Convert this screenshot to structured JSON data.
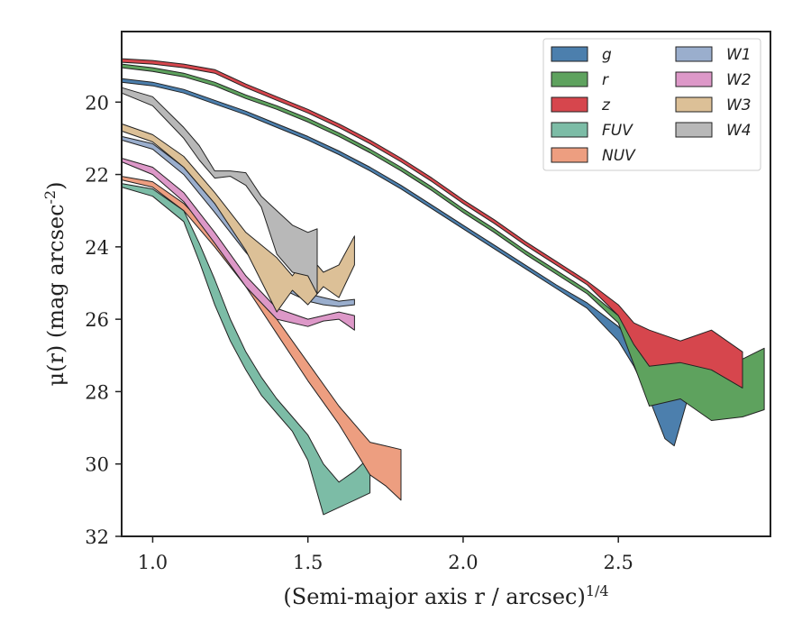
{
  "chart_data": {
    "type": "area",
    "xlabel": "(Semi-major axis r / arcsec)^{1/4}",
    "ylabel": "μ(r) (mag arcsec^{-2})",
    "xlim": [
      0.9,
      2.99
    ],
    "ylim": [
      32,
      18.05
    ],
    "y_inverted": true,
    "x_ticks": [
      "1.0",
      "1.5",
      "2.0",
      "2.5"
    ],
    "x_tick_values": [
      1.0,
      1.5,
      2.0,
      2.5
    ],
    "y_ticks": [
      "20",
      "22",
      "24",
      "26",
      "28",
      "30",
      "32"
    ],
    "y_tick_values": [
      20,
      22,
      24,
      26,
      28,
      30,
      32
    ],
    "grid": false,
    "legend_position": "top-right",
    "series": [
      {
        "name": "g",
        "color": "#4c7fad",
        "x": [
          0.9,
          1.0,
          1.1,
          1.2,
          1.3,
          1.4,
          1.5,
          1.6,
          1.7,
          1.8,
          1.9,
          2.0,
          2.1,
          2.2,
          2.3,
          2.4,
          2.5,
          2.55,
          2.6,
          2.65,
          2.68,
          2.72
        ],
        "lower": [
          19.35,
          19.45,
          19.65,
          19.95,
          20.25,
          20.6,
          20.95,
          21.35,
          21.8,
          22.3,
          22.85,
          23.4,
          23.95,
          24.5,
          25.05,
          25.55,
          26.2,
          26.7,
          27.3,
          27.8,
          28.2,
          28.0
        ],
        "upper": [
          19.45,
          19.55,
          19.75,
          20.05,
          20.35,
          20.7,
          21.05,
          21.45,
          21.9,
          22.4,
          22.95,
          23.5,
          24.05,
          24.6,
          25.15,
          25.7,
          26.6,
          27.3,
          28.2,
          29.3,
          29.5,
          28.3
        ]
      },
      {
        "name": "r",
        "color": "#5ea25e",
        "x": [
          0.9,
          1.0,
          1.1,
          1.2,
          1.3,
          1.4,
          1.5,
          1.6,
          1.7,
          1.8,
          1.9,
          2.0,
          2.1,
          2.2,
          2.3,
          2.4,
          2.5,
          2.6,
          2.7,
          2.8,
          2.9,
          2.97
        ],
        "lower": [
          18.95,
          19.05,
          19.2,
          19.45,
          19.8,
          20.1,
          20.45,
          20.85,
          21.3,
          21.8,
          22.35,
          22.95,
          23.5,
          24.1,
          24.65,
          25.2,
          25.9,
          26.6,
          27.1,
          27.3,
          27.1,
          26.8
        ],
        "upper": [
          19.05,
          19.15,
          19.3,
          19.55,
          19.9,
          20.2,
          20.55,
          20.95,
          21.4,
          21.9,
          22.45,
          23.05,
          23.6,
          24.2,
          24.75,
          25.3,
          26.1,
          28.4,
          28.2,
          28.8,
          28.7,
          28.5
        ]
      },
      {
        "name": "z",
        "color": "#d6464d",
        "x": [
          0.9,
          1.0,
          1.1,
          1.2,
          1.3,
          1.4,
          1.5,
          1.6,
          1.7,
          1.8,
          1.9,
          2.0,
          2.1,
          2.2,
          2.3,
          2.4,
          2.5,
          2.55,
          2.6,
          2.7,
          2.8,
          2.9
        ],
        "lower": [
          18.8,
          18.85,
          18.95,
          19.1,
          19.5,
          19.85,
          20.2,
          20.6,
          21.05,
          21.55,
          22.1,
          22.7,
          23.25,
          23.85,
          24.4,
          24.95,
          25.6,
          26.1,
          26.3,
          26.6,
          26.3,
          26.9
        ],
        "upper": [
          18.9,
          18.95,
          19.05,
          19.2,
          19.6,
          19.95,
          20.3,
          20.7,
          21.15,
          21.65,
          22.2,
          22.8,
          23.35,
          23.95,
          24.5,
          25.05,
          25.9,
          26.7,
          27.3,
          27.2,
          27.4,
          27.9
        ]
      },
      {
        "name": "FUV",
        "color": "#7cbca6",
        "x": [
          0.9,
          1.0,
          1.1,
          1.15,
          1.2,
          1.25,
          1.3,
          1.35,
          1.4,
          1.45,
          1.5,
          1.55,
          1.6,
          1.65,
          1.7
        ],
        "lower": [
          22.25,
          22.4,
          23.0,
          23.9,
          24.9,
          26.0,
          26.9,
          27.6,
          28.2,
          28.7,
          29.2,
          30.0,
          30.5,
          30.2,
          29.8
        ],
        "upper": [
          22.35,
          22.6,
          23.3,
          24.4,
          25.6,
          26.6,
          27.4,
          28.1,
          28.6,
          29.1,
          29.9,
          31.4,
          31.2,
          31.0,
          30.8
        ]
      },
      {
        "name": "NUV",
        "color": "#ed9e80",
        "x": [
          0.9,
          1.0,
          1.1,
          1.2,
          1.3,
          1.4,
          1.5,
          1.6,
          1.65,
          1.7,
          1.75,
          1.8
        ],
        "lower": [
          22.05,
          22.2,
          22.8,
          23.7,
          24.8,
          26.0,
          27.2,
          28.4,
          28.9,
          29.4,
          29.5,
          29.6
        ],
        "upper": [
          22.15,
          22.35,
          23.0,
          24.0,
          25.1,
          26.4,
          27.7,
          28.9,
          29.6,
          30.3,
          30.6,
          31.0
        ]
      },
      {
        "name": "W1",
        "color": "#9aaecd",
        "x": [
          0.9,
          1.0,
          1.1,
          1.2,
          1.3,
          1.4,
          1.5,
          1.55,
          1.6,
          1.65
        ],
        "lower": [
          20.95,
          21.15,
          21.8,
          22.8,
          23.9,
          24.85,
          25.3,
          25.4,
          25.5,
          25.45
        ],
        "upper": [
          21.05,
          21.3,
          22.0,
          23.05,
          24.15,
          25.1,
          25.5,
          25.6,
          25.65,
          25.6
        ]
      },
      {
        "name": "W2",
        "color": "#dd98c8",
        "x": [
          0.9,
          1.0,
          1.1,
          1.2,
          1.3,
          1.4,
          1.5,
          1.55,
          1.6,
          1.65
        ],
        "lower": [
          21.55,
          21.8,
          22.5,
          23.6,
          24.8,
          25.7,
          26.0,
          25.9,
          25.8,
          25.9
        ],
        "upper": [
          21.65,
          22.0,
          22.75,
          23.9,
          25.1,
          26.0,
          26.2,
          26.05,
          26.0,
          26.3
        ]
      },
      {
        "name": "W3",
        "color": "#dcc097",
        "x": [
          0.9,
          1.0,
          1.1,
          1.2,
          1.3,
          1.4,
          1.45,
          1.5,
          1.55,
          1.6,
          1.65
        ],
        "lower": [
          20.6,
          20.9,
          21.5,
          22.5,
          23.6,
          24.3,
          24.8,
          24.2,
          24.7,
          24.5,
          23.7
        ],
        "upper": [
          20.8,
          21.1,
          21.8,
          22.8,
          24.1,
          25.8,
          25.2,
          25.6,
          25.1,
          25.4,
          24.5
        ]
      },
      {
        "name": "W4",
        "color": "#b8b8b8",
        "x": [
          0.9,
          1.0,
          1.1,
          1.15,
          1.2,
          1.25,
          1.3,
          1.35,
          1.4,
          1.45,
          1.5,
          1.53
        ],
        "lower": [
          19.6,
          19.85,
          20.7,
          21.2,
          21.9,
          21.9,
          21.95,
          22.6,
          23.0,
          23.4,
          23.6,
          23.5
        ],
        "upper": [
          19.75,
          20.1,
          21.0,
          21.6,
          22.1,
          22.05,
          22.3,
          22.9,
          24.2,
          24.7,
          24.8,
          25.3
        ]
      }
    ]
  }
}
